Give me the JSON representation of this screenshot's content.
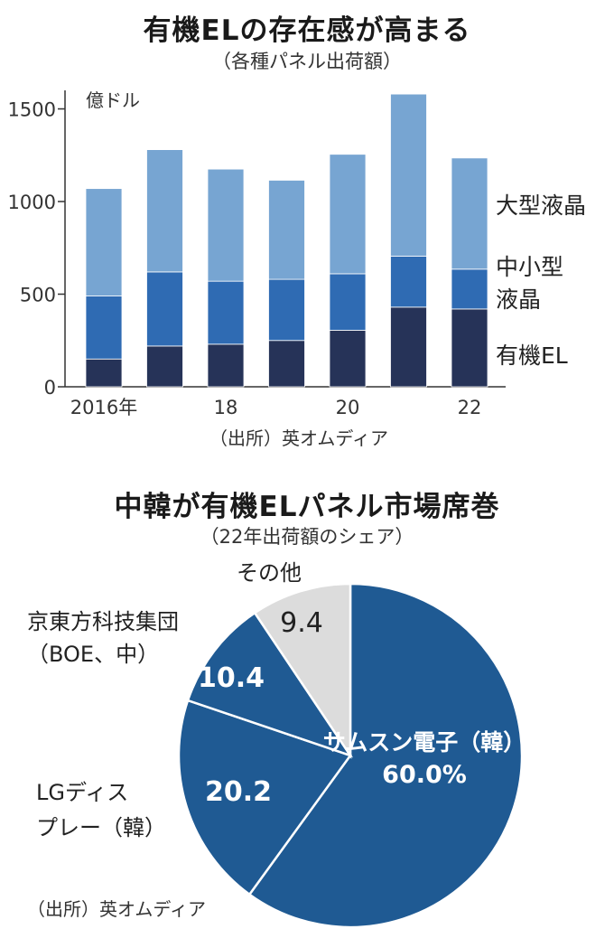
{
  "bar_chart": {
    "title": "有機ELの存在感が高まる",
    "subtitle": "（各種パネル出荷額）",
    "unit": "億ドル",
    "source": "（出所）英オムディア"
  },
  "pie_chart": {
    "title": "中韓が有機ELパネル市場席巻",
    "subtitle": "（22年出荷額のシェア）",
    "source": "（出所）英オムディア"
  },
  "colors": {
    "oled": "#263358",
    "small_mid_lcd": "#2f6bb3",
    "large_lcd": "#77a5d2",
    "pie_main": "#1f5a93",
    "pie_other": "#dcdcdc"
  },
  "chart_data": [
    {
      "type": "bar",
      "stacked": true,
      "categories": [
        "2016年",
        "",
        "18",
        "",
        "20",
        "",
        "22"
      ],
      "series": [
        {
          "name": "有機EL",
          "values": [
            150,
            220,
            230,
            250,
            305,
            430,
            420
          ]
        },
        {
          "name": "中小型液晶",
          "values": [
            340,
            400,
            340,
            330,
            305,
            275,
            215
          ]
        },
        {
          "name": "大型液晶",
          "values": [
            580,
            660,
            605,
            535,
            645,
            875,
            600
          ]
        }
      ],
      "ylim": [
        0,
        1600
      ],
      "yticks": [
        0,
        500,
        1000,
        1500
      ],
      "ylabel": "億ドル",
      "grid": false,
      "legend": "right, inline labels"
    },
    {
      "type": "pie",
      "labels": [
        "サムスン電子（韓）",
        "LGディスプレー（韓）",
        "京東方科技集団（BOE、中）",
        "その他"
      ],
      "values": [
        60.0,
        20.2,
        10.4,
        9.4
      ],
      "value_labels": [
        "60.0%",
        "20.2",
        "10.4",
        "9.4"
      ]
    }
  ]
}
